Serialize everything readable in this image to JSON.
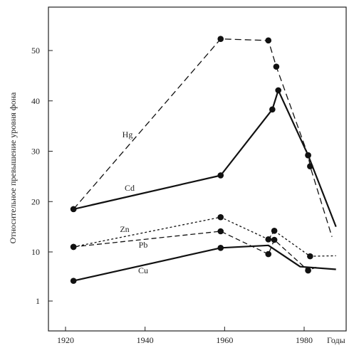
{
  "chart_data": {
    "type": "line",
    "xlabel": "Годы",
    "ylabel": "Относительное превышение уровня фона",
    "x_ticks": [
      "1920",
      "1940",
      "1960",
      "1980"
    ],
    "y_ticks": [
      "1",
      "10",
      "20",
      "30",
      "40",
      "50"
    ],
    "grid": false,
    "series": [
      {
        "name": "Hg",
        "style": "long-dash",
        "points": [
          [
            1922,
            18.5
          ],
          [
            1959,
            52.3
          ],
          [
            1971,
            52.0
          ],
          [
            1973,
            46.8
          ],
          [
            1981,
            29.2
          ],
          [
            1981.5,
            27.0
          ],
          [
            1987,
            13.0
          ]
        ],
        "markers": [
          true,
          true,
          true,
          true,
          true,
          true,
          false
        ]
      },
      {
        "name": "Cd",
        "style": "solid",
        "points": [
          [
            1922,
            18.5
          ],
          [
            1959,
            25.2
          ],
          [
            1972,
            38.3
          ],
          [
            1973.5,
            42.1
          ],
          [
            1981,
            29.2
          ],
          [
            1988,
            15.0
          ]
        ],
        "markers": [
          true,
          true,
          true,
          true,
          true,
          false
        ]
      },
      {
        "name": "Zn",
        "style": "short-dash",
        "points": [
          [
            1922,
            11.0
          ],
          [
            1959,
            16.9
          ],
          [
            1971,
            12.5
          ],
          [
            1972.5,
            14.2
          ],
          [
            1981.5,
            9.2
          ],
          [
            1988,
            9.3
          ]
        ],
        "markers": [
          true,
          true,
          true,
          true,
          true,
          false
        ]
      },
      {
        "name": "Pb",
        "style": "medium-dash",
        "points": [
          [
            1922,
            11.0
          ],
          [
            1959,
            14.1
          ],
          [
            1971,
            9.6
          ],
          [
            1972.5,
            12.4
          ],
          [
            1981,
            6.6
          ],
          [
            1983,
            7.2
          ]
        ],
        "markers": [
          true,
          true,
          true,
          true,
          true,
          false
        ]
      },
      {
        "name": "Cu",
        "style": "solid",
        "points": [
          [
            1922,
            4.7
          ],
          [
            1959,
            10.8
          ],
          [
            1971,
            11.3
          ],
          [
            1979,
            7.3
          ],
          [
            1988,
            6.8
          ]
        ],
        "markers": [
          true,
          true,
          false,
          false,
          false
        ]
      }
    ]
  }
}
